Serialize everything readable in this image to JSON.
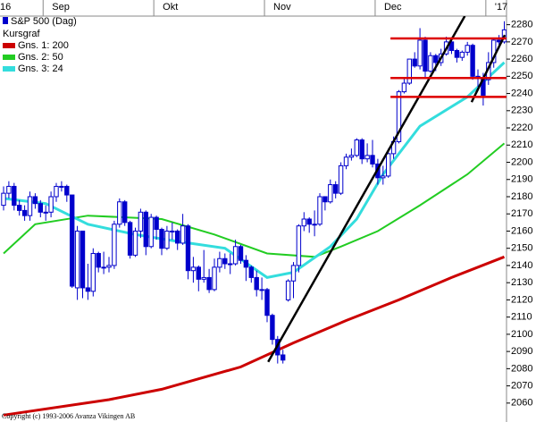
{
  "chart_data": {
    "type": "candlestick",
    "name": "S&P 500 (Dag)",
    "legend_title": "Kursgraf",
    "color": "#0000cc",
    "copyright": "Copyright (c) 1993-2006 Avanza Vikingen AB",
    "categories": [
      "16",
      null,
      null,
      null,
      null,
      null,
      null,
      null,
      "Sep",
      null,
      null,
      null,
      null,
      null,
      null,
      null,
      null,
      null,
      null,
      null,
      null,
      null,
      null,
      null,
      null,
      null,
      null,
      null,
      null,
      "Okt",
      null,
      null,
      null,
      null,
      null,
      null,
      null,
      null,
      null,
      null,
      null,
      null,
      null,
      null,
      null,
      null,
      null,
      null,
      null,
      null,
      "Nov",
      null,
      null,
      null,
      null,
      null,
      null,
      null,
      null,
      null,
      null,
      null,
      null,
      null,
      null,
      null,
      null,
      null,
      null,
      null,
      null,
      "Dec",
      null,
      null,
      null,
      null,
      null,
      null,
      null,
      null,
      null,
      null,
      null,
      null,
      null,
      null,
      null,
      null,
      null,
      null,
      null,
      null,
      "'17",
      null,
      null,
      null
    ],
    "open": [
      2175,
      2182,
      2186,
      2175,
      2172,
      2169,
      2180,
      2176,
      2171,
      2171,
      2180,
      2186,
      2186,
      2181,
      2127,
      2160,
      2127,
      2125,
      2147,
      2139,
      2139,
      2140,
      2164,
      2177,
      2165,
      2146,
      2160,
      2171,
      2151,
      2168,
      2161,
      2150,
      2160,
      2160,
      2153,
      2163,
      2137,
      2139,
      2132,
      2133,
      2126,
      2139,
      2144,
      2141,
      2141,
      2151,
      2143,
      2139,
      2133,
      2126,
      2126,
      2111,
      2097,
      2088,
      2120,
      2131,
      2140,
      2163,
      2167,
      2164,
      2164,
      2180,
      2177,
      2187,
      2182,
      2198,
      2203,
      2204,
      2213,
      2202,
      2204,
      2199,
      2191,
      2192,
      2205,
      2212,
      2241,
      2246,
      2260,
      2256,
      2271,
      2253,
      2262,
      2258,
      2263,
      2270,
      2265,
      2261,
      2264,
      2268,
      2250,
      2249,
      2248,
      2258,
      2271,
      2270
    ],
    "high": [
      2186,
      2189,
      2188,
      2178,
      2175,
      2183,
      2182,
      2178,
      2175,
      2183,
      2188,
      2189,
      2187,
      2181,
      2163,
      2160,
      2141,
      2150,
      2148,
      2148,
      2145,
      2166,
      2179,
      2178,
      2166,
      2162,
      2173,
      2172,
      2170,
      2169,
      2162,
      2163,
      2165,
      2161,
      2170,
      2164,
      2145,
      2140,
      2149,
      2138,
      2144,
      2148,
      2147,
      2147,
      2155,
      2152,
      2146,
      2140,
      2137,
      2133,
      2127,
      2112,
      2099,
      2091,
      2132,
      2142,
      2164,
      2171,
      2168,
      2172,
      2182,
      2180,
      2190,
      2189,
      2200,
      2205,
      2208,
      2214,
      2214,
      2211,
      2213,
      2202,
      2198,
      2208,
      2215,
      2242,
      2249,
      2260,
      2264,
      2278,
      2273,
      2264,
      2263,
      2266,
      2273,
      2271,
      2266,
      2265,
      2270,
      2269,
      2254,
      2252,
      2264,
      2272,
      2274,
      2282
    ],
    "low": [
      2172,
      2179,
      2172,
      2169,
      2166,
      2166,
      2173,
      2168,
      2166,
      2168,
      2177,
      2183,
      2177,
      2127,
      2120,
      2121,
      2120,
      2122,
      2136,
      2135,
      2136,
      2138,
      2162,
      2163,
      2144,
      2145,
      2156,
      2146,
      2150,
      2155,
      2146,
      2149,
      2155,
      2149,
      2152,
      2132,
      2130,
      2125,
      2130,
      2124,
      2125,
      2136,
      2138,
      2135,
      2140,
      2141,
      2131,
      2130,
      2122,
      2120,
      2107,
      2094,
      2083,
      2083,
      2119,
      2121,
      2136,
      2160,
      2159,
      2157,
      2163,
      2172,
      2176,
      2179,
      2181,
      2196,
      2201,
      2203,
      2199,
      2200,
      2197,
      2187,
      2187,
      2191,
      2202,
      2211,
      2240,
      2245,
      2255,
      2254,
      2249,
      2252,
      2253,
      2256,
      2262,
      2263,
      2258,
      2259,
      2262,
      2248,
      2244,
      2233,
      2245,
      2255,
      2266,
      2269
    ],
    "close": [
      2182,
      2186,
      2175,
      2172,
      2169,
      2180,
      2176,
      2171,
      2171,
      2180,
      2186,
      2186,
      2181,
      2128,
      2160,
      2127,
      2125,
      2147,
      2139,
      2139,
      2140,
      2164,
      2177,
      2165,
      2146,
      2160,
      2171,
      2151,
      2168,
      2161,
      2150,
      2160,
      2160,
      2153,
      2163,
      2137,
      2139,
      2132,
      2133,
      2126,
      2139,
      2144,
      2141,
      2141,
      2151,
      2143,
      2139,
      2133,
      2126,
      2126,
      2111,
      2097,
      2088,
      2085,
      2131,
      2140,
      2163,
      2167,
      2164,
      2164,
      2180,
      2177,
      2187,
      2182,
      2198,
      2203,
      2204,
      2213,
      2202,
      2204,
      2199,
      2191,
      2192,
      2205,
      2212,
      2241,
      2246,
      2260,
      2256,
      2271,
      2253,
      2262,
      2258,
      2263,
      2270,
      2265,
      2261,
      2264,
      2268,
      2250,
      2249,
      2239,
      2258,
      2271,
      2270,
      2277
    ],
    "series": [
      {
        "name": "Gns. 1: 200",
        "color": "#cc0000",
        "x": [
          0,
          20,
          30,
          45,
          55,
          65,
          75,
          85,
          95
        ],
        "values": [
          2053,
          2062,
          2068,
          2081,
          2095,
          2108,
          2120,
          2133,
          2145
        ]
      },
      {
        "name": "Gns. 2: 50",
        "color": "#22cc22",
        "x": [
          0,
          6,
          16,
          30,
          40,
          50,
          59,
          64,
          71,
          79,
          88,
          95
        ],
        "values": [
          2147,
          2164,
          2169,
          2167,
          2158,
          2147,
          2145,
          2151,
          2160,
          2175,
          2193,
          2211
        ]
      },
      {
        "name": "Gns. 3: 24",
        "color": "#33dddd",
        "x": [
          0,
          8,
          16,
          25,
          33,
          42,
          50,
          55,
          62,
          67,
          72,
          79,
          88,
          95
        ],
        "values": [
          2179,
          2176,
          2164,
          2158,
          2154,
          2150,
          2133,
          2136,
          2151,
          2167,
          2193,
          2221,
          2238,
          2258
        ]
      }
    ],
    "annotation_lines": [
      {
        "color": "#000000",
        "x": [
          50.2,
          87.5
        ],
        "y": [
          2084,
          2285
        ]
      },
      {
        "color": "#000000",
        "x": [
          88.8,
          95.1
        ],
        "y": [
          2235,
          2274
        ]
      },
      {
        "color": "#dd0000",
        "x": [
          73.4,
          95.4
        ],
        "y": [
          2272,
          2272
        ]
      },
      {
        "color": "#dd0000",
        "x": [
          73.4,
          95.4
        ],
        "y": [
          2249,
          2249
        ]
      },
      {
        "color": "#dd0000",
        "x": [
          73.4,
          95.4
        ],
        "y": [
          2238,
          2238
        ]
      }
    ],
    "ylim": [
      2049,
      2285
    ],
    "yticks": [
      2060,
      2070,
      2080,
      2090,
      2100,
      2110,
      2120,
      2130,
      2140,
      2150,
      2160,
      2170,
      2180,
      2190,
      2200,
      2210,
      2220,
      2230,
      2240,
      2250,
      2260,
      2270,
      2280
    ]
  }
}
